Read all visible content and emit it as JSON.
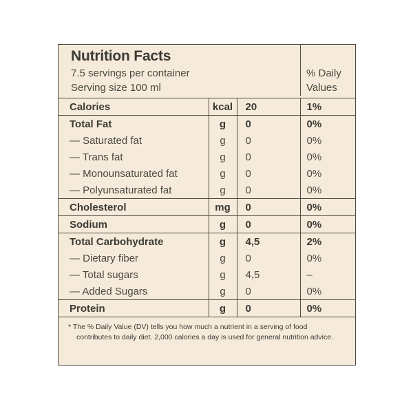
{
  "header": {
    "title": "Nutrition Facts",
    "servings": "7.5 servings per container",
    "serving_size": "Serving size 100 ml",
    "dv_line1": "% Daily",
    "dv_line2": "Values"
  },
  "rows": [
    {
      "name": "Calories",
      "unit": "kcal",
      "amount": "20",
      "dv": "1%",
      "bold": true,
      "top": true
    },
    {
      "name": "Total Fat",
      "unit": "g",
      "amount": "0",
      "dv": "0%",
      "bold": true,
      "top": true
    },
    {
      "name": "— Saturated fat",
      "unit": "g",
      "amount": "0",
      "dv": "0%",
      "bold": false,
      "top": false
    },
    {
      "name": "— Trans fat",
      "unit": "g",
      "amount": "0",
      "dv": "0%",
      "bold": false,
      "top": false
    },
    {
      "name": "— Monounsaturated fat",
      "unit": "g",
      "amount": "0",
      "dv": "0%",
      "bold": false,
      "top": false
    },
    {
      "name": "— Polyunsaturated fat",
      "unit": "g",
      "amount": "0",
      "dv": "0%",
      "bold": false,
      "top": false
    },
    {
      "name": "Cholesterol",
      "unit": "mg",
      "amount": "0",
      "dv": "0%",
      "bold": true,
      "top": true
    },
    {
      "name": "Sodium",
      "unit": "g",
      "amount": "0",
      "dv": "0%",
      "bold": true,
      "top": true
    },
    {
      "name": "Total Carbohydrate",
      "unit": "g",
      "amount": "4,5",
      "dv": "2%",
      "bold": true,
      "top": true
    },
    {
      "name": "— Dietary fiber",
      "unit": "g",
      "amount": "0",
      "dv": "0%",
      "bold": false,
      "top": false
    },
    {
      "name": "— Total sugars",
      "unit": "g",
      "amount": "4,5",
      "dv": "–",
      "bold": false,
      "top": false
    },
    {
      "name": "— Added Sugars",
      "unit": "g",
      "amount": "0",
      "dv": "0%",
      "bold": false,
      "top": false
    },
    {
      "name": "Protein",
      "unit": "g",
      "amount": "0",
      "dv": "0%",
      "bold": true,
      "top": true
    }
  ],
  "footnote": {
    "line1": "* The % Daily Value (DV) tells you how much a nutrient in a serving of food",
    "line2": "contributes to daily diet. 2,000 calories a day is used for general nutrition advice."
  },
  "colors": {
    "background": "#f6eadb",
    "border": "#4a4a3e",
    "text": "#3b3b33"
  }
}
